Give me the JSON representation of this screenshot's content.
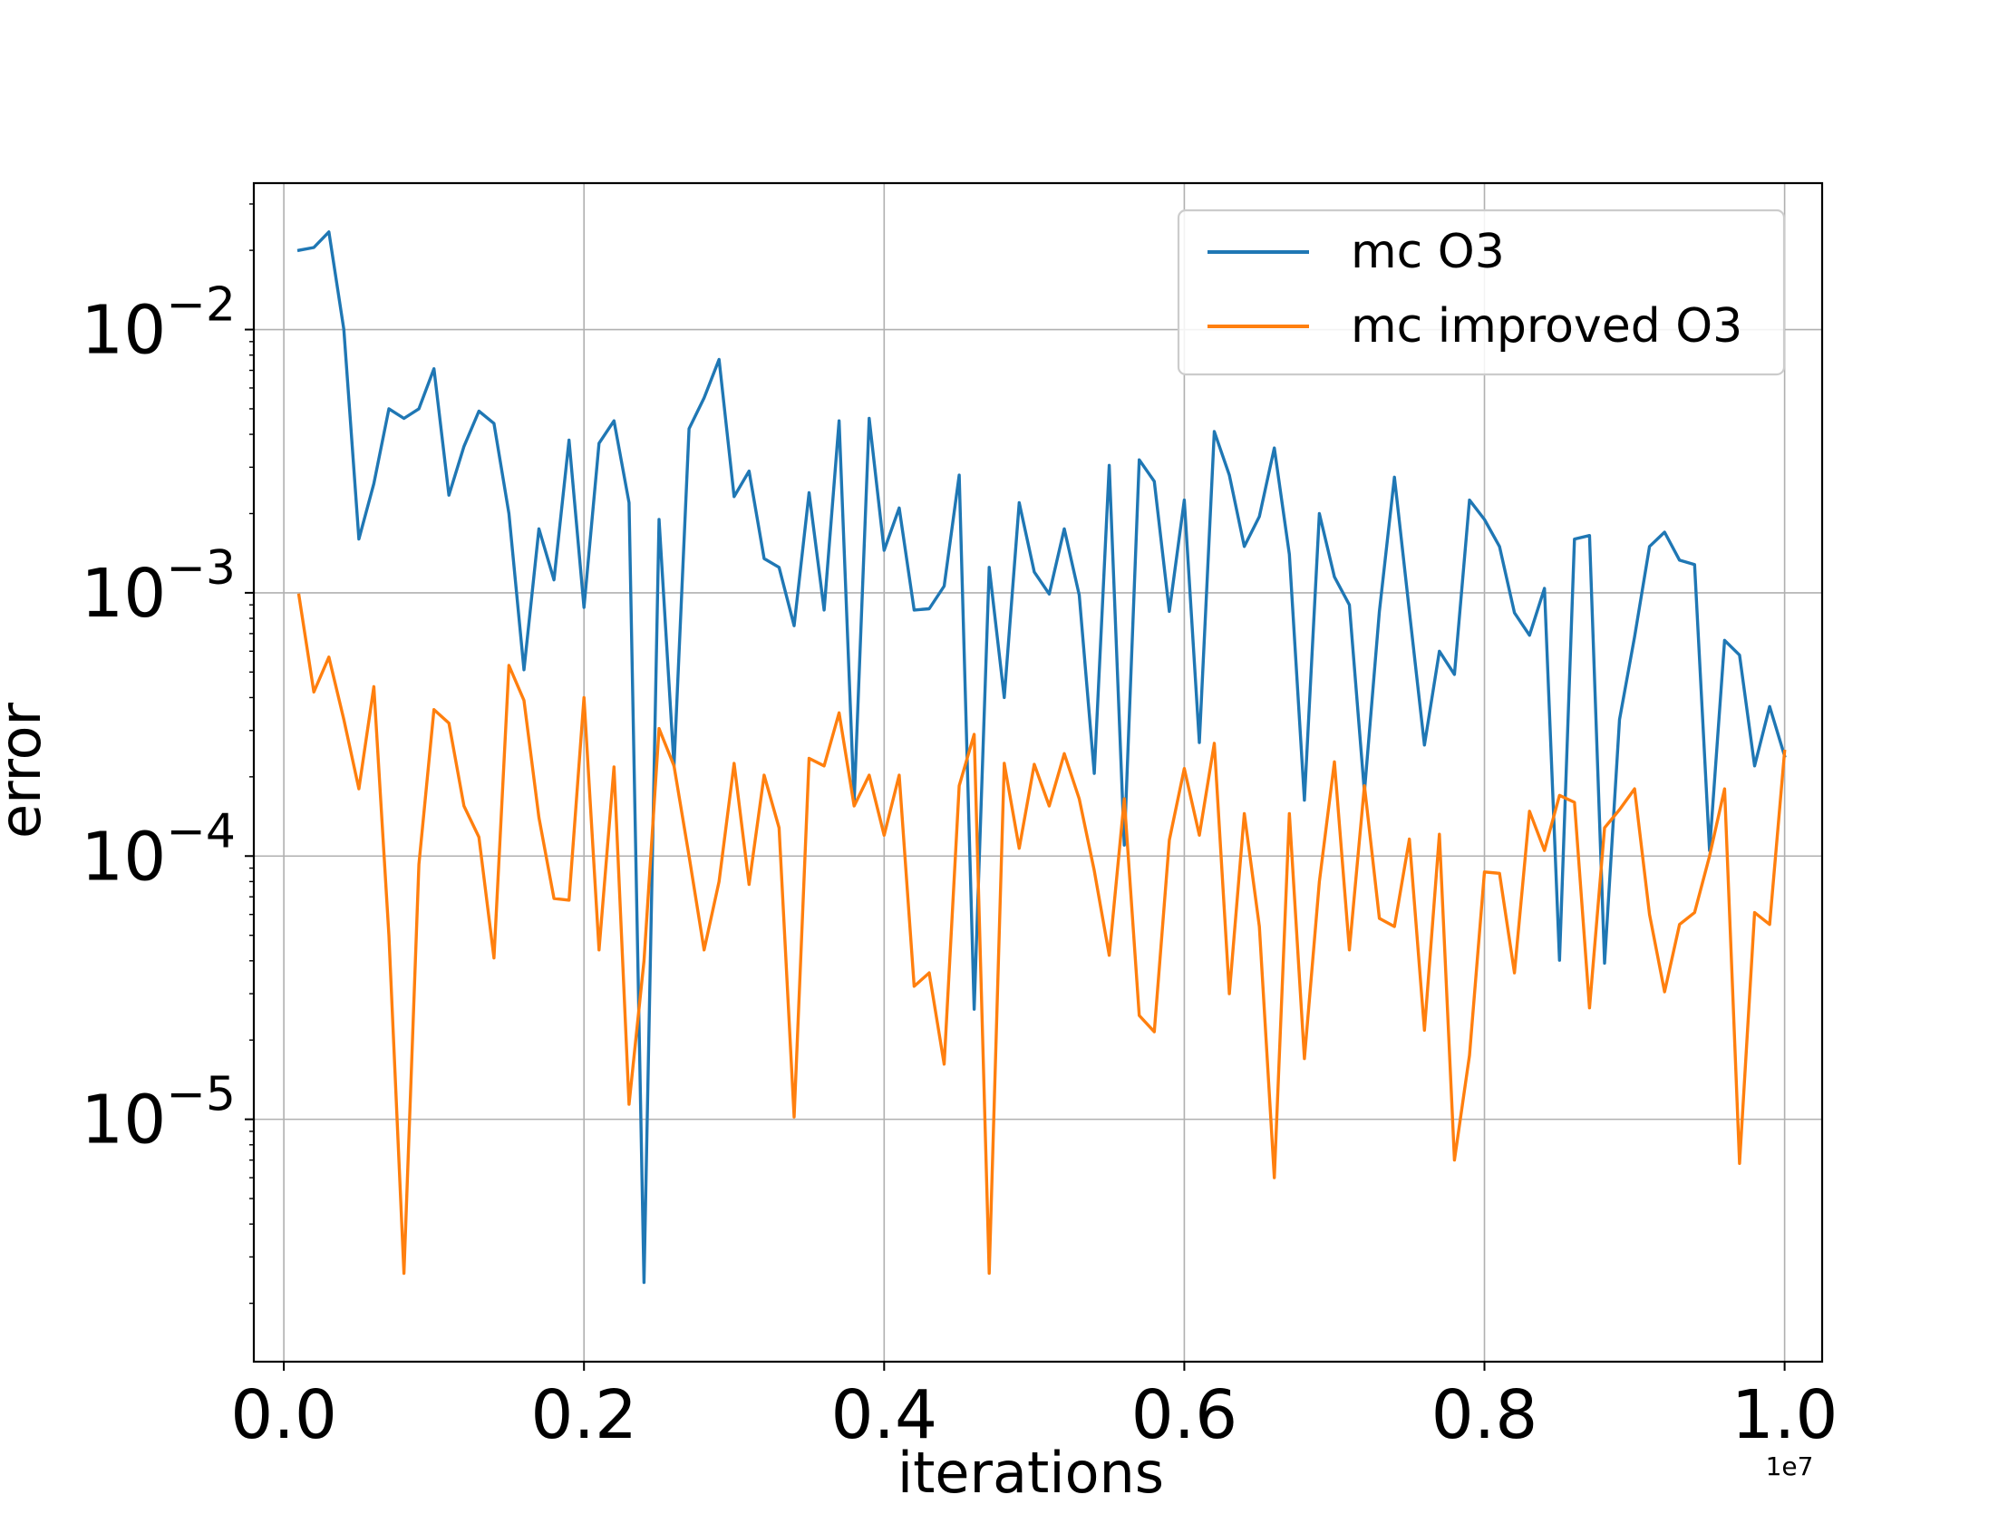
{
  "chart_data": {
    "type": "line",
    "title": "",
    "xlabel": "iterations",
    "ylabel": "error",
    "x_offset_label": "1e7",
    "x_scale": "linear",
    "y_scale": "log",
    "xlim": [
      -0.02,
      1.025
    ],
    "ylim": [
      1.2e-06,
      0.036
    ],
    "grid": true,
    "legend_position": "upper right",
    "x_ticks": [
      0.0,
      0.2,
      0.4,
      0.6,
      0.8,
      1.0
    ],
    "x_tick_labels": [
      "0.0",
      "0.2",
      "0.4",
      "0.6",
      "0.8",
      "1.0"
    ],
    "y_ticks": [
      1e-05,
      0.0001,
      0.001,
      0.01
    ],
    "y_tick_labels": [
      {
        "base": "10",
        "exp": "−5"
      },
      {
        "base": "10",
        "exp": "−4"
      },
      {
        "base": "10",
        "exp": "−3"
      },
      {
        "base": "10",
        "exp": "−2"
      }
    ],
    "x": [
      0.01,
      0.02,
      0.03,
      0.04,
      0.05,
      0.06,
      0.07,
      0.08,
      0.09,
      0.1,
      0.11,
      0.12,
      0.13,
      0.14,
      0.15,
      0.16,
      0.17,
      0.18,
      0.19,
      0.2,
      0.21,
      0.22,
      0.23,
      0.24,
      0.25,
      0.26,
      0.27,
      0.28,
      0.29,
      0.3,
      0.31,
      0.32,
      0.33,
      0.34,
      0.35,
      0.36,
      0.37,
      0.38,
      0.39,
      0.4,
      0.41,
      0.42,
      0.43,
      0.44,
      0.45,
      0.46,
      0.47,
      0.48,
      0.49,
      0.5,
      0.51,
      0.52,
      0.53,
      0.54,
      0.55,
      0.56,
      0.57,
      0.58,
      0.59,
      0.6,
      0.61,
      0.62,
      0.63,
      0.64,
      0.65,
      0.66,
      0.67,
      0.68,
      0.69,
      0.7,
      0.71,
      0.72,
      0.73,
      0.74,
      0.75,
      0.76,
      0.77,
      0.78,
      0.79,
      0.8,
      0.81,
      0.82,
      0.83,
      0.84,
      0.85,
      0.86,
      0.87,
      0.88,
      0.89,
      0.9,
      0.91,
      0.92,
      0.93,
      0.94,
      0.95,
      0.96,
      0.97,
      0.98,
      0.99,
      1.0
    ],
    "series": [
      {
        "name": "mc O3",
        "color": "#1f77b4",
        "values": [
          0.02,
          0.0205,
          0.0235,
          0.01,
          0.0016,
          0.0026,
          0.005,
          0.0046,
          0.005,
          0.0071,
          0.00235,
          0.0036,
          0.0049,
          0.0044,
          0.002,
          0.00051,
          0.00175,
          0.00112,
          0.0038,
          0.00088,
          0.0037,
          0.0045,
          0.0022,
          2.4e-06,
          0.0019,
          0.00022,
          0.0042,
          0.0055,
          0.0077,
          0.00232,
          0.0029,
          0.00135,
          0.00125,
          0.00075,
          0.0024,
          0.00086,
          0.0045,
          0.00016,
          0.0046,
          0.00145,
          0.0021,
          0.00086,
          0.00087,
          0.00106,
          0.0028,
          2.62e-05,
          0.00125,
          0.0004,
          0.0022,
          0.0012,
          0.00099,
          0.00175,
          0.00098,
          0.000206,
          0.00305,
          0.00011,
          0.0032,
          0.00265,
          0.00085,
          0.00225,
          0.00027,
          0.0041,
          0.0028,
          0.0015,
          0.00195,
          0.00355,
          0.0014,
          0.000163,
          0.002,
          0.00115,
          0.0009,
          0.000175,
          0.00085,
          0.00275,
          0.00085,
          0.000264,
          0.0006,
          0.00049,
          0.00225,
          0.0019,
          0.0015,
          0.00084,
          0.00069,
          0.00104,
          4.02e-05,
          0.0016,
          0.00165,
          3.92e-05,
          0.00033,
          0.00068,
          0.0015,
          0.0017,
          0.00133,
          0.00128,
          0.000105,
          0.00066,
          0.00058,
          0.00022,
          0.00037,
          0.00024
        ]
      },
      {
        "name": "mc improved O3",
        "color": "#ff7f0e",
        "values": [
          0.00098,
          0.00042,
          0.00057,
          0.00033,
          0.00018,
          0.00044,
          5e-05,
          2.6e-06,
          9.3e-05,
          0.00036,
          0.00032,
          0.000155,
          0.000118,
          4.1e-05,
          0.00053,
          0.00039,
          0.00014,
          6.9e-05,
          6.8e-05,
          0.0004,
          4.4e-05,
          0.000218,
          1.14e-05,
          4e-05,
          0.000305,
          0.00022,
          0.0001,
          4.4e-05,
          8e-05,
          0.000225,
          7.8e-05,
          0.000203,
          0.000128,
          1.02e-05,
          0.000235,
          0.00022,
          0.00035,
          0.000155,
          0.000203,
          0.00012,
          0.000203,
          3.2e-05,
          3.6e-05,
          1.62e-05,
          0.000185,
          0.00029,
          2.6e-06,
          0.000225,
          0.000107,
          0.000223,
          0.000155,
          0.000245,
          0.000165,
          8.8e-05,
          4.2e-05,
          0.000165,
          2.48e-05,
          2.15e-05,
          0.000115,
          0.000215,
          0.00012,
          0.000268,
          3e-05,
          0.000145,
          5.4e-05,
          6e-06,
          0.000145,
          1.7e-05,
          8e-05,
          0.000228,
          4.4e-05,
          0.000185,
          5.8e-05,
          5.4e-05,
          0.000116,
          2.18e-05,
          0.000121,
          7e-06,
          1.75e-05,
          8.7e-05,
          8.6e-05,
          3.6e-05,
          0.000148,
          0.000105,
          0.00017,
          0.00016,
          2.65e-05,
          0.000128,
          0.00015,
          0.00018,
          6e-05,
          3.05e-05,
          5.5e-05,
          6.1e-05,
          0.0001,
          0.00018,
          6.8e-06,
          6.1e-05,
          5.5e-05,
          0.00025
        ]
      }
    ]
  }
}
